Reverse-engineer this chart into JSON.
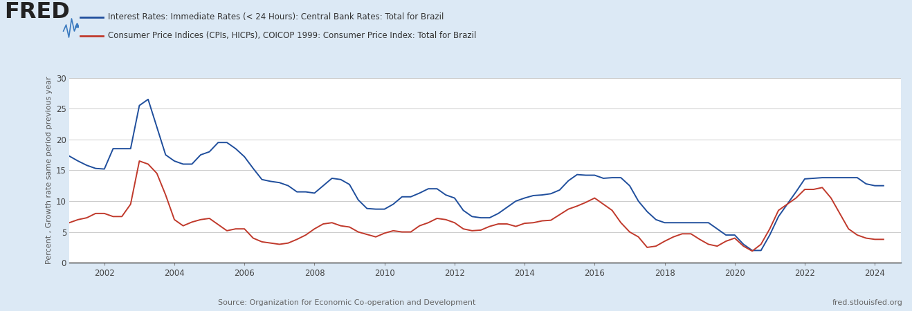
{
  "bg_color": "#dce9f5",
  "plot_bg_color": "#ffffff",
  "legend1": "Interest Rates: Immediate Rates (< 24 Hours): Central Bank Rates: Total for Brazil",
  "legend2": "Consumer Price Indices (CPIs, HICPs), COICOP 1999: Consumer Price Index: Total for Brazil",
  "ylabel": "Percent , Growth rate same period previous year",
  "source_text": "Source: Organization for Economic Co-operation and Development",
  "source_right": "fred.stlouisfed.org",
  "line1_color": "#1f4e9c",
  "line2_color": "#c0392b",
  "ylim": [
    0,
    30
  ],
  "yticks": [
    0,
    5,
    10,
    15,
    20,
    25,
    30
  ],
  "xtick_years": [
    2002,
    2004,
    2006,
    2008,
    2010,
    2012,
    2014,
    2016,
    2018,
    2020,
    2022,
    2024
  ],
  "xlim": [
    2001.0,
    2024.75
  ],
  "interest_x": [
    2001.0,
    2001.25,
    2001.5,
    2001.75,
    2002.0,
    2002.25,
    2002.5,
    2002.75,
    2003.0,
    2003.25,
    2003.5,
    2003.75,
    2004.0,
    2004.25,
    2004.5,
    2004.75,
    2005.0,
    2005.25,
    2005.5,
    2005.75,
    2006.0,
    2006.25,
    2006.5,
    2006.75,
    2007.0,
    2007.25,
    2007.5,
    2007.75,
    2008.0,
    2008.25,
    2008.5,
    2008.75,
    2009.0,
    2009.25,
    2009.5,
    2009.75,
    2010.0,
    2010.25,
    2010.5,
    2010.75,
    2011.0,
    2011.25,
    2011.5,
    2011.75,
    2012.0,
    2012.25,
    2012.5,
    2012.75,
    2013.0,
    2013.25,
    2013.5,
    2013.75,
    2014.0,
    2014.25,
    2014.5,
    2014.75,
    2015.0,
    2015.25,
    2015.5,
    2015.75,
    2016.0,
    2016.25,
    2016.5,
    2016.75,
    2017.0,
    2017.25,
    2017.5,
    2017.75,
    2018.0,
    2018.25,
    2018.5,
    2018.75,
    2019.0,
    2019.25,
    2019.5,
    2019.75,
    2020.0,
    2020.25,
    2020.5,
    2020.75,
    2021.0,
    2021.25,
    2021.5,
    2021.75,
    2022.0,
    2022.25,
    2022.5,
    2022.75,
    2023.0,
    2023.25,
    2023.5,
    2023.75,
    2024.0,
    2024.25
  ],
  "interest_y": [
    17.3,
    16.5,
    15.8,
    15.3,
    15.2,
    18.5,
    18.5,
    18.5,
    25.5,
    26.5,
    22.0,
    17.5,
    16.5,
    16.0,
    16.0,
    17.5,
    18.0,
    19.5,
    19.5,
    18.5,
    17.2,
    15.3,
    13.5,
    13.2,
    13.0,
    12.5,
    11.5,
    11.5,
    11.3,
    12.5,
    13.7,
    13.5,
    12.7,
    10.2,
    8.8,
    8.7,
    8.7,
    9.5,
    10.7,
    10.7,
    11.3,
    12.0,
    12.0,
    11.0,
    10.5,
    8.5,
    7.5,
    7.3,
    7.3,
    8.0,
    9.0,
    10.0,
    10.5,
    10.9,
    11.0,
    11.2,
    11.8,
    13.3,
    14.3,
    14.2,
    14.2,
    13.7,
    13.8,
    13.8,
    12.5,
    10.0,
    8.3,
    7.0,
    6.5,
    6.5,
    6.5,
    6.5,
    6.5,
    6.5,
    5.5,
    4.5,
    4.5,
    3.0,
    2.0,
    2.0,
    4.5,
    7.5,
    9.5,
    11.5,
    13.6,
    13.7,
    13.8,
    13.8,
    13.8,
    13.8,
    13.8,
    12.8,
    12.5,
    12.5
  ],
  "cpi_x": [
    2001.0,
    2001.25,
    2001.5,
    2001.75,
    2002.0,
    2002.25,
    2002.5,
    2002.75,
    2003.0,
    2003.25,
    2003.5,
    2003.75,
    2004.0,
    2004.25,
    2004.5,
    2004.75,
    2005.0,
    2005.25,
    2005.5,
    2005.75,
    2006.0,
    2006.25,
    2006.5,
    2006.75,
    2007.0,
    2007.25,
    2007.5,
    2007.75,
    2008.0,
    2008.25,
    2008.5,
    2008.75,
    2009.0,
    2009.25,
    2009.5,
    2009.75,
    2010.0,
    2010.25,
    2010.5,
    2010.75,
    2011.0,
    2011.25,
    2011.5,
    2011.75,
    2012.0,
    2012.25,
    2012.5,
    2012.75,
    2013.0,
    2013.25,
    2013.5,
    2013.75,
    2014.0,
    2014.25,
    2014.5,
    2014.75,
    2015.0,
    2015.25,
    2015.5,
    2015.75,
    2016.0,
    2016.25,
    2016.5,
    2016.75,
    2017.0,
    2017.25,
    2017.5,
    2017.75,
    2018.0,
    2018.25,
    2018.5,
    2018.75,
    2019.0,
    2019.25,
    2019.5,
    2019.75,
    2020.0,
    2020.25,
    2020.5,
    2020.75,
    2021.0,
    2021.25,
    2021.5,
    2021.75,
    2022.0,
    2022.25,
    2022.5,
    2022.75,
    2023.0,
    2023.25,
    2023.5,
    2023.75,
    2024.0,
    2024.25
  ],
  "cpi_y": [
    6.5,
    7.0,
    7.3,
    8.0,
    8.0,
    7.5,
    7.5,
    9.5,
    16.5,
    16.0,
    14.5,
    11.0,
    7.0,
    6.0,
    6.6,
    7.0,
    7.2,
    6.2,
    5.2,
    5.5,
    5.5,
    4.0,
    3.4,
    3.2,
    3.0,
    3.2,
    3.8,
    4.5,
    5.5,
    6.3,
    6.5,
    6.0,
    5.8,
    5.0,
    4.6,
    4.2,
    4.8,
    5.2,
    5.0,
    5.0,
    6.0,
    6.5,
    7.2,
    7.0,
    6.5,
    5.5,
    5.2,
    5.3,
    5.9,
    6.3,
    6.3,
    5.9,
    6.4,
    6.5,
    6.8,
    6.9,
    7.8,
    8.7,
    9.2,
    9.8,
    10.5,
    9.5,
    8.5,
    6.5,
    5.0,
    4.2,
    2.5,
    2.7,
    3.5,
    4.2,
    4.7,
    4.7,
    3.8,
    3.0,
    2.7,
    3.5,
    4.0,
    2.7,
    1.9,
    3.0,
    5.5,
    8.5,
    9.5,
    10.5,
    11.9,
    11.9,
    12.2,
    10.5,
    8.0,
    5.5,
    4.5,
    4.0,
    3.8,
    3.8
  ]
}
